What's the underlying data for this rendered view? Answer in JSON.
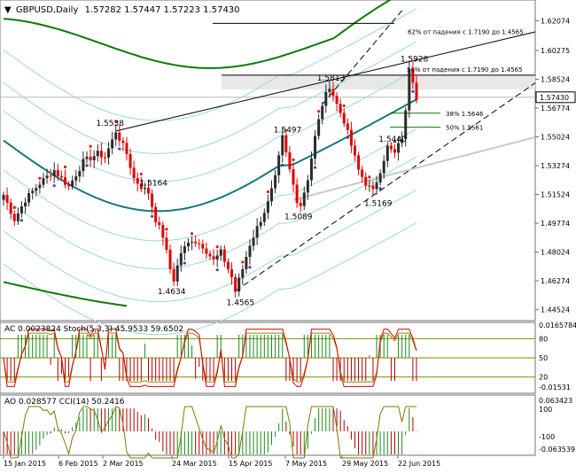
{
  "header": {
    "symbol_line": "GBPUSD,Daily",
    "ohlc": "1.57282 1.57447 1.57223 1.57430"
  },
  "colors": {
    "bull": "#2b2b2b",
    "bear": "#e00000",
    "green_band": "#0a7a0a",
    "teal_ma": "#127a78",
    "cyan_band": "#9ad8d8",
    "ac_pos": "#1a8a1a",
    "ac_neg": "#b00000",
    "stoch_main": "#e00000",
    "stoch_signal": "#8a8a00",
    "cci": "#7a7a00"
  },
  "chart_data": [
    {
      "type": "line",
      "panel": "price",
      "ylim": [
        1.4407,
        1.6307
      ],
      "price_axis_ticks": [
        "1.62074",
        "1.60275",
        "1.58524",
        "1.56774",
        "1.55024",
        "1.53274",
        "1.51524",
        "1.49774",
        "1.48024",
        "1.46274",
        "1.44524"
      ],
      "current_price": "1.57430",
      "annotations": [
        {
          "text": "1.5538",
          "x": "6 Feb 2015",
          "y": 1.5538
        },
        {
          "text": "1.5164",
          "x": "2 Mar 2015",
          "y": 1.5164
        },
        {
          "text": "1.4634",
          "x": "2 Mar 2015",
          "y": 1.4634
        },
        {
          "text": "1.4565",
          "x": "24 Mar 2015",
          "y": 1.4565
        },
        {
          "text": "1.5497",
          "x": "15 Apr 2015",
          "y": 1.5497
        },
        {
          "text": "1.5089",
          "x": "15 Apr 2015",
          "y": 1.5089
        },
        {
          "text": "1.5813",
          "x": "7 May 2015",
          "y": 1.5813
        },
        {
          "text": "1.5440",
          "x": "29 May 2015",
          "y": 1.544
        },
        {
          "text": "1.5169",
          "x": "29 May 2015",
          "y": 1.5169
        },
        {
          "text": "1.5928",
          "x": "22 Jun 2015",
          "y": 1.5928
        }
      ],
      "levels": [
        {
          "text": "62% от падения с 1.7190 до 1.4565",
          "y": 1.6192
        },
        {
          "text": "50% от падения с 1.7190 до 1.4565",
          "y": 1.5877
        },
        {
          "text": "38% 1.5646",
          "y": 1.5646
        },
        {
          "text": "50% 1.5561",
          "y": 1.5561
        }
      ]
    },
    {
      "type": "bar",
      "panel": "ac_stoch",
      "label": "AC 0.0023824  Stoch(5,3,3) 45.9533 59.6502",
      "axis_labels": [
        "0.0165784",
        "80",
        "50",
        "20",
        "-0.01531"
      ],
      "levels": [
        80,
        50,
        20
      ]
    },
    {
      "type": "bar",
      "panel": "ao_cci",
      "label": "AO 0.028577  CCI(14) 50.2416",
      "axis_labels": [
        "0.063423",
        "100",
        "-100",
        "-0.063539"
      ]
    }
  ],
  "x_axis_labels": [
    "15 Jan 2015",
    "6 Feb 2015",
    "2 Mar 2015",
    "24 Mar 2015",
    "15 Apr 2015",
    "7 May 2015",
    "29 May 2015",
    "22 Jun 2015"
  ]
}
